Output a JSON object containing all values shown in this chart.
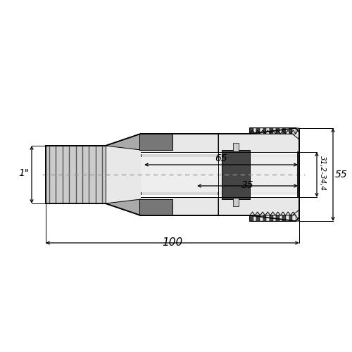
{
  "bg_color": "#ffffff",
  "lc": "#000000",
  "fill_light": "#cccccc",
  "fill_lighter": "#e8e8e8",
  "fill_mid": "#aaaaaa",
  "fill_dark": "#777777",
  "fill_vdark": "#444444",
  "fill_white": "#f5f5f5",
  "fill_pipe": "#d8d8d8",
  "dim_100": "100",
  "dim_35": "35",
  "dim_65": "65",
  "dim_1inch": "1\"",
  "dim_3124": "31,2-34,4",
  "dim_55": "55",
  "figsize": [
    5.0,
    5.0
  ],
  "dpi": 100
}
